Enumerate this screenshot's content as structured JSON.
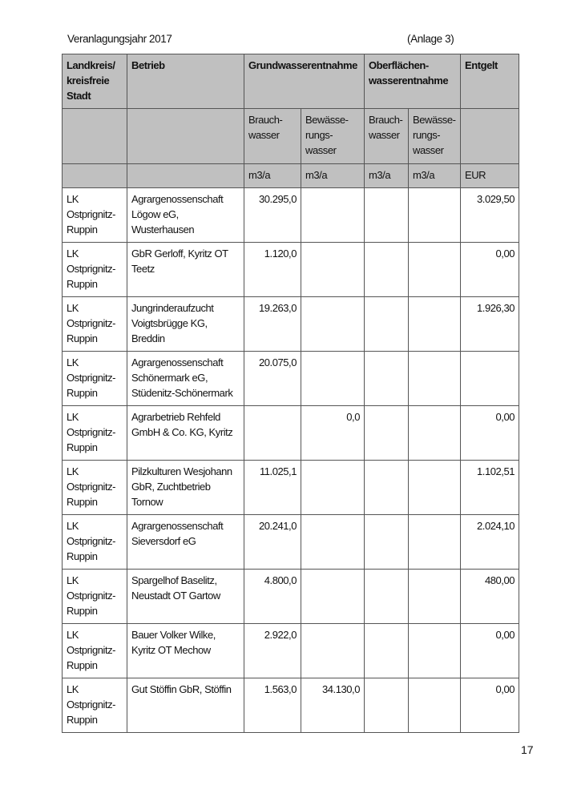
{
  "header": {
    "year": "Veranlagungsjahr 2017",
    "annex": "(Anlage 3)"
  },
  "table": {
    "head1": [
      "Landkreis/ kreisfreie Stadt",
      "Betrieb",
      "Grundwasserentnahme",
      "Oberflächen-wasserentnahme",
      "Entgelt"
    ],
    "head2": [
      "Brauch-wasser",
      "Bewässe-rungs-wasser",
      "Brauch-wasser",
      "Bewässe-rungs-wasser"
    ],
    "units": [
      "m3/a",
      "m3/a",
      "m3/a",
      "m3/a",
      "EUR"
    ],
    "rows": [
      {
        "district": "LK Ostprignitz-Ruppin",
        "company": "Agrargenossenschaft Lögow eG, Wusterhausen",
        "gw_brauch": "30.295,0",
        "gw_bew": "",
        "ow_brauch": "",
        "ow_bew": "",
        "fee": "3.029,50"
      },
      {
        "district": "LK Ostprignitz-Ruppin",
        "company": "GbR Gerloff, Kyritz OT Teetz",
        "gw_brauch": "1.120,0",
        "gw_bew": "",
        "ow_brauch": "",
        "ow_bew": "",
        "fee": "0,00"
      },
      {
        "district": "LK Ostprignitz-Ruppin",
        "company": "Jungrinderaufzucht Voigtsbrügge KG, Breddin",
        "gw_brauch": "19.263,0",
        "gw_bew": "",
        "ow_brauch": "",
        "ow_bew": "",
        "fee": "1.926,30"
      },
      {
        "district": "LK Ostprignitz-Ruppin",
        "company": "Agrargenossenschaft Schönermark eG, Stüdenitz-Schönermark",
        "gw_brauch": "20.075,0",
        "gw_bew": "",
        "ow_brauch": "",
        "ow_bew": "",
        "fee": ""
      },
      {
        "district": "LK Ostprignitz-Ruppin",
        "company": "Agrarbetrieb Rehfeld GmbH & Co. KG, Kyritz",
        "gw_brauch": "",
        "gw_bew": "0,0",
        "ow_brauch": "",
        "ow_bew": "",
        "fee": "0,00"
      },
      {
        "district": "LK Ostprignitz-Ruppin",
        "company": "Pilzkulturen Wesjohann GbR, Zuchtbetrieb Tornow",
        "gw_brauch": "11.025,1",
        "gw_bew": "",
        "ow_brauch": "",
        "ow_bew": "",
        "fee": "1.102,51"
      },
      {
        "district": "LK Ostprignitz-Ruppin",
        "company": "Agrargenossenschaft Sieversdorf eG",
        "gw_brauch": "20.241,0",
        "gw_bew": "",
        "ow_brauch": "",
        "ow_bew": "",
        "fee": "2.024,10"
      },
      {
        "district": "LK Ostprignitz-Ruppin",
        "company": "Spargelhof Baselitz, Neustadt OT Gartow",
        "gw_brauch": "4.800,0",
        "gw_bew": "",
        "ow_brauch": "",
        "ow_bew": "",
        "fee": "480,00"
      },
      {
        "district": "LK Ostprignitz-Ruppin",
        "company": "Bauer Volker Wilke, Kyritz OT Mechow",
        "gw_brauch": "2.922,0",
        "gw_bew": "",
        "ow_brauch": "",
        "ow_bew": "",
        "fee": "0,00"
      },
      {
        "district": "LK Ostprignitz-Ruppin",
        "company": "Gut Stöffin GbR, Stöffin",
        "gw_brauch": "1.563,0",
        "gw_bew": "34.130,0",
        "ow_brauch": "",
        "ow_bew": "",
        "fee": "0,00"
      }
    ]
  },
  "footer": {
    "page_number": "17"
  }
}
